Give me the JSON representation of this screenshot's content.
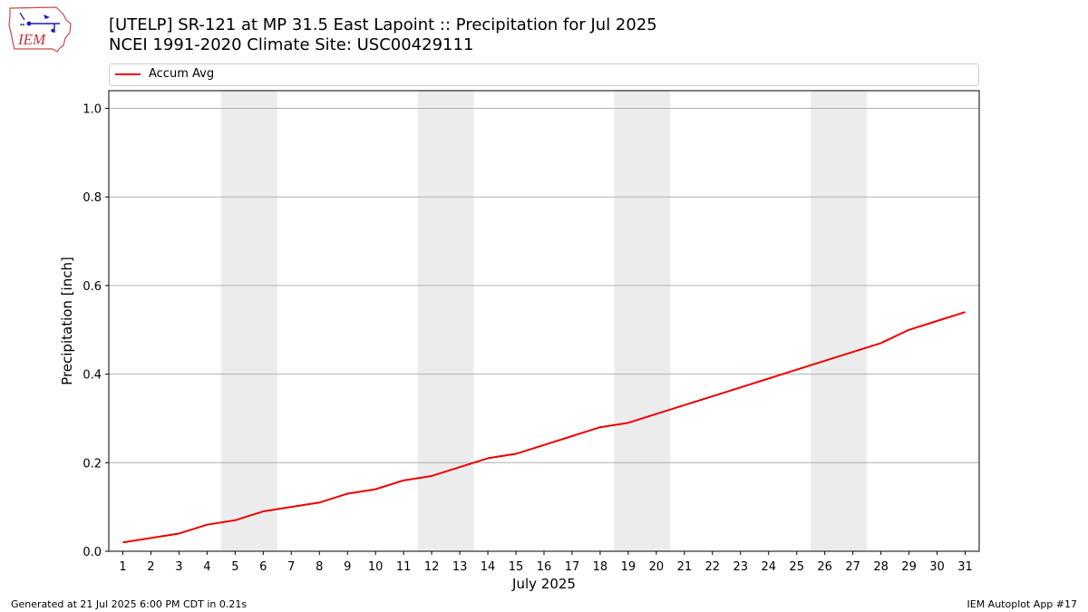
{
  "title_line1": "[UTELP] SR-121 at MP 31.5 East Lapoint  :: Precipitation for Jul 2025",
  "title_line2": "NCEI 1991-2020 Climate Site: USC00429111",
  "logo_text": "IEM",
  "legend": {
    "label": "Accum Avg",
    "color": "#ee0000"
  },
  "footer_left": "Generated at 21 Jul 2025 6:00 PM CDT in 0.21s",
  "footer_right": "IEM Autoplot App #17",
  "chart_data": {
    "type": "line",
    "xlabel": "July 2025",
    "ylabel": "Precipitation [inch]",
    "xlim": [
      0.5,
      31.5
    ],
    "ylim": [
      0,
      1.04
    ],
    "yticks": [
      "0.0",
      "0.2",
      "0.4",
      "0.6",
      "0.8",
      "1.0"
    ],
    "ytick_values": [
      0,
      0.2,
      0.4,
      0.6,
      0.8,
      1.0
    ],
    "xticks": [
      1,
      2,
      3,
      4,
      5,
      6,
      7,
      8,
      9,
      10,
      11,
      12,
      13,
      14,
      15,
      16,
      17,
      18,
      19,
      20,
      21,
      22,
      23,
      24,
      25,
      26,
      27,
      28,
      29,
      30,
      31
    ],
    "grid": "horizontal",
    "legend_position": "top",
    "weekend_shading": [
      [
        4.5,
        6.5
      ],
      [
        11.5,
        13.5
      ],
      [
        18.5,
        20.5
      ],
      [
        25.5,
        27.5
      ]
    ],
    "shading_color": "#ececec",
    "series": [
      {
        "name": "Accum Avg",
        "color": "#ee0000",
        "x": [
          1,
          2,
          3,
          4,
          5,
          6,
          7,
          8,
          9,
          10,
          11,
          12,
          13,
          14,
          15,
          16,
          17,
          18,
          19,
          20,
          21,
          22,
          23,
          24,
          25,
          26,
          27,
          28,
          29,
          30,
          31
        ],
        "values": [
          0.02,
          0.03,
          0.04,
          0.06,
          0.07,
          0.09,
          0.1,
          0.11,
          0.13,
          0.14,
          0.16,
          0.17,
          0.19,
          0.21,
          0.22,
          0.24,
          0.26,
          0.28,
          0.29,
          0.31,
          0.33,
          0.35,
          0.37,
          0.39,
          0.41,
          0.43,
          0.45,
          0.47,
          0.5,
          0.52,
          0.54
        ]
      }
    ]
  }
}
